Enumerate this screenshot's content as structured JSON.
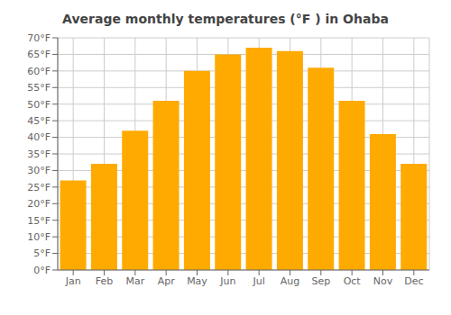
{
  "chart_data": {
    "type": "bar",
    "title": "Average monthly temperatures (°F ) in Ohaba",
    "categories": [
      "Jan",
      "Feb",
      "Mar",
      "Apr",
      "May",
      "Jun",
      "Jul",
      "Aug",
      "Sep",
      "Oct",
      "Nov",
      "Dec"
    ],
    "values": [
      27,
      32,
      42,
      51,
      60,
      65,
      67,
      66,
      61,
      51,
      41,
      32
    ],
    "color": "#FFAA00",
    "ylim": [
      0,
      70
    ],
    "yticks": [
      {
        "value": 0,
        "label": "0°F"
      },
      {
        "value": 5,
        "label": "5°F"
      },
      {
        "value": 10,
        "label": "10°F"
      },
      {
        "value": 15,
        "label": "15°F"
      },
      {
        "value": 20,
        "label": "20°F"
      },
      {
        "value": 25,
        "label": "25°F"
      },
      {
        "value": 30,
        "label": "30°F"
      },
      {
        "value": 35,
        "label": "35°F"
      },
      {
        "value": 40,
        "label": "40°F"
      },
      {
        "value": 45,
        "label": "45°F"
      },
      {
        "value": 50,
        "label": "50°F"
      },
      {
        "value": 55,
        "label": "55°F"
      },
      {
        "value": 60,
        "label": "60°F"
      },
      {
        "value": 65,
        "label": "65°F"
      },
      {
        "value": 70,
        "label": "70°F"
      }
    ],
    "grid": true
  }
}
